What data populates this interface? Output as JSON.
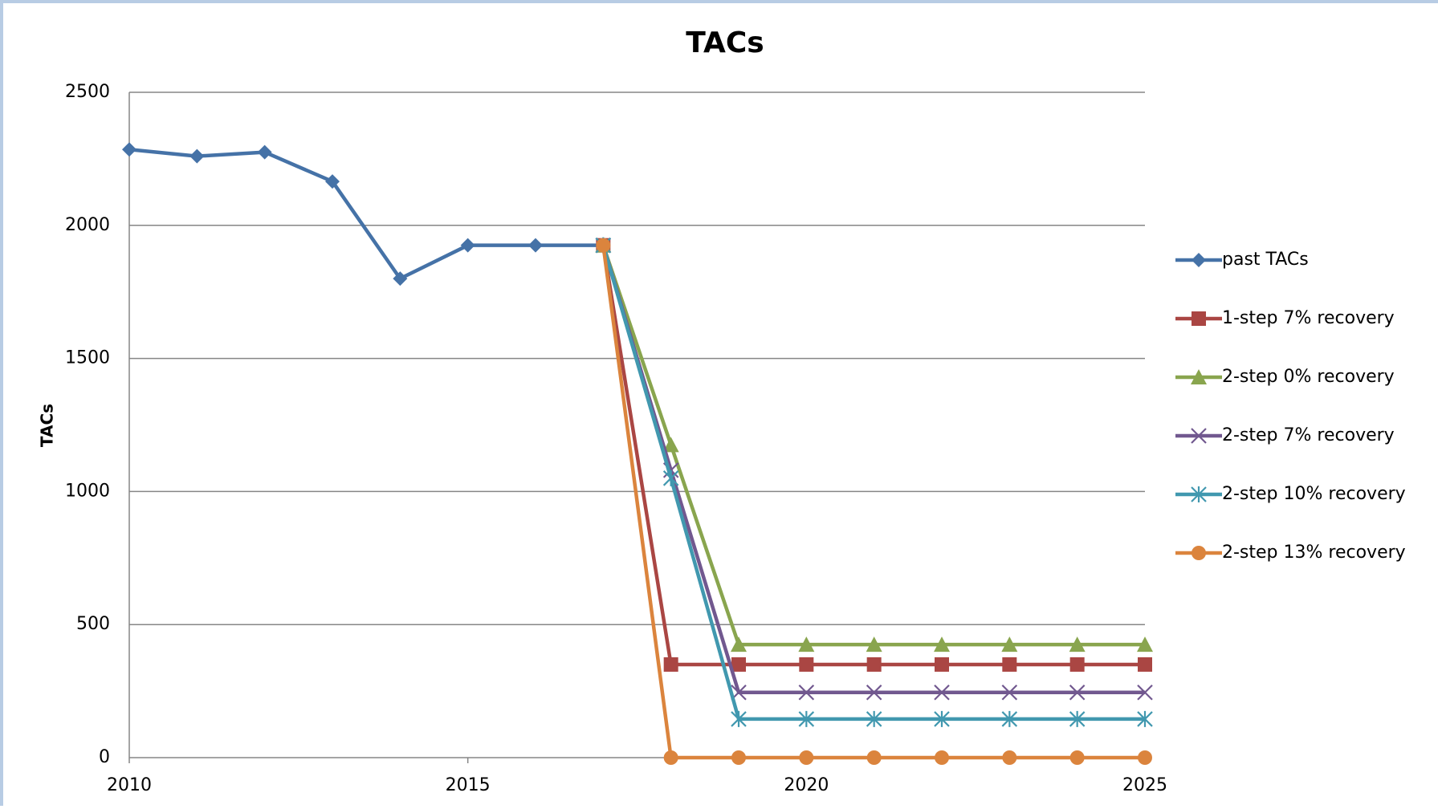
{
  "chart_data": {
    "type": "line",
    "title": "TACs",
    "y_label": "TACs",
    "x": [
      2010,
      2011,
      2012,
      2013,
      2014,
      2015,
      2016,
      2017,
      2018,
      2019,
      2020,
      2021,
      2022,
      2023,
      2024,
      2025
    ],
    "xlim": [
      2010,
      2025
    ],
    "xticks": [
      2010,
      2015,
      2020,
      2025
    ],
    "ylim": [
      0,
      2500
    ],
    "yticks": [
      0,
      500,
      1000,
      1500,
      2000,
      2500
    ],
    "grid": true,
    "legend": "right",
    "series": [
      {
        "name": "past TACs",
        "color": "#4572a7",
        "marker": "diamond",
        "values": [
          2285,
          2260,
          2275,
          2165,
          1800,
          1925,
          1925,
          1925,
          null,
          null,
          null,
          null,
          null,
          null,
          null,
          null
        ]
      },
      {
        "name": "1-step 7% recovery",
        "color": "#aa4643",
        "marker": "square",
        "values": [
          null,
          null,
          null,
          null,
          null,
          null,
          null,
          1925,
          350,
          350,
          350,
          350,
          350,
          350,
          350,
          350
        ]
      },
      {
        "name": "2-step 0% recovery",
        "color": "#89a54e",
        "marker": "triangle",
        "values": [
          null,
          null,
          null,
          null,
          null,
          null,
          null,
          1925,
          1175,
          425,
          425,
          425,
          425,
          425,
          425,
          425
        ]
      },
      {
        "name": "2-step 7% recovery",
        "color": "#71588f",
        "marker": "x",
        "values": [
          null,
          null,
          null,
          null,
          null,
          null,
          null,
          1925,
          1080,
          245,
          245,
          245,
          245,
          245,
          245,
          245
        ]
      },
      {
        "name": "2-step 10% recovery",
        "color": "#4198af",
        "marker": "star",
        "values": [
          null,
          null,
          null,
          null,
          null,
          null,
          null,
          1925,
          1050,
          145,
          145,
          145,
          145,
          145,
          145,
          145
        ]
      },
      {
        "name": "2-step 13% recovery",
        "color": "#db843d",
        "marker": "circle",
        "values": [
          null,
          null,
          null,
          null,
          null,
          null,
          null,
          1925,
          0,
          0,
          0,
          0,
          0,
          0,
          0,
          0
        ]
      }
    ]
  }
}
